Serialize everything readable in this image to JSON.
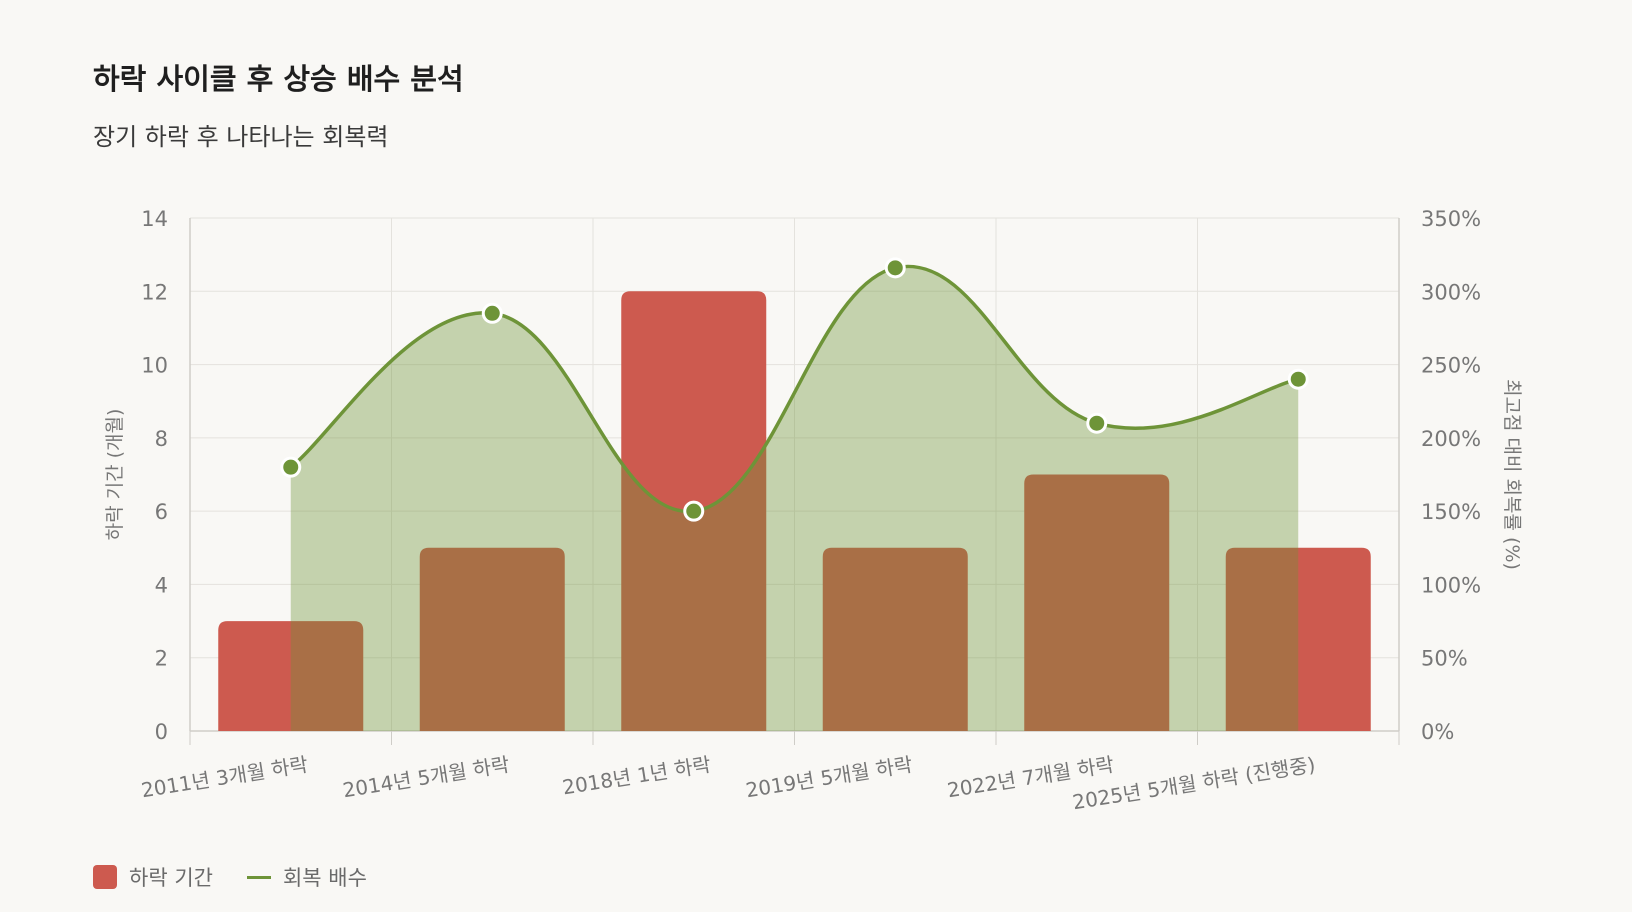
{
  "header": {
    "title": "하락 사이클 후 상승 배수 분석",
    "subtitle": "장기 하락 후 나타나는 회복력"
  },
  "chart_data": {
    "type": "bar",
    "categories": [
      "2011년 3개월 하락",
      "2014년 5개월 하락",
      "2018년 1년 하락",
      "2019년 5개월 하락",
      "2022년 7개월 하락",
      "2025년 5개월 하락 (진행중)"
    ],
    "series": [
      {
        "name": "하락 기간",
        "type": "bar",
        "axis": "left",
        "color": "#cd5a4f",
        "values": [
          3,
          5,
          12,
          5,
          7,
          5
        ]
      },
      {
        "name": "회복 배수",
        "type": "area-line",
        "axis": "right",
        "color": "#6e9438",
        "values": [
          180,
          285,
          150,
          316,
          210,
          240
        ]
      }
    ],
    "ylabel": "하락 기간 (개월)",
    "y2label": "최고점 대비 회복률 (%)",
    "ylim": [
      0,
      14
    ],
    "y2lim": [
      0,
      350
    ],
    "yticks": [
      "0",
      "2",
      "4",
      "6",
      "8",
      "10",
      "12",
      "14"
    ],
    "y2ticks": [
      "0%",
      "50%",
      "100%",
      "150%",
      "200%",
      "250%",
      "300%",
      "350%"
    ],
    "grid": true,
    "legend_position": "bottom-left"
  },
  "legend": {
    "items": [
      {
        "label": "하락 기간"
      },
      {
        "label": "회복 배수"
      }
    ]
  }
}
